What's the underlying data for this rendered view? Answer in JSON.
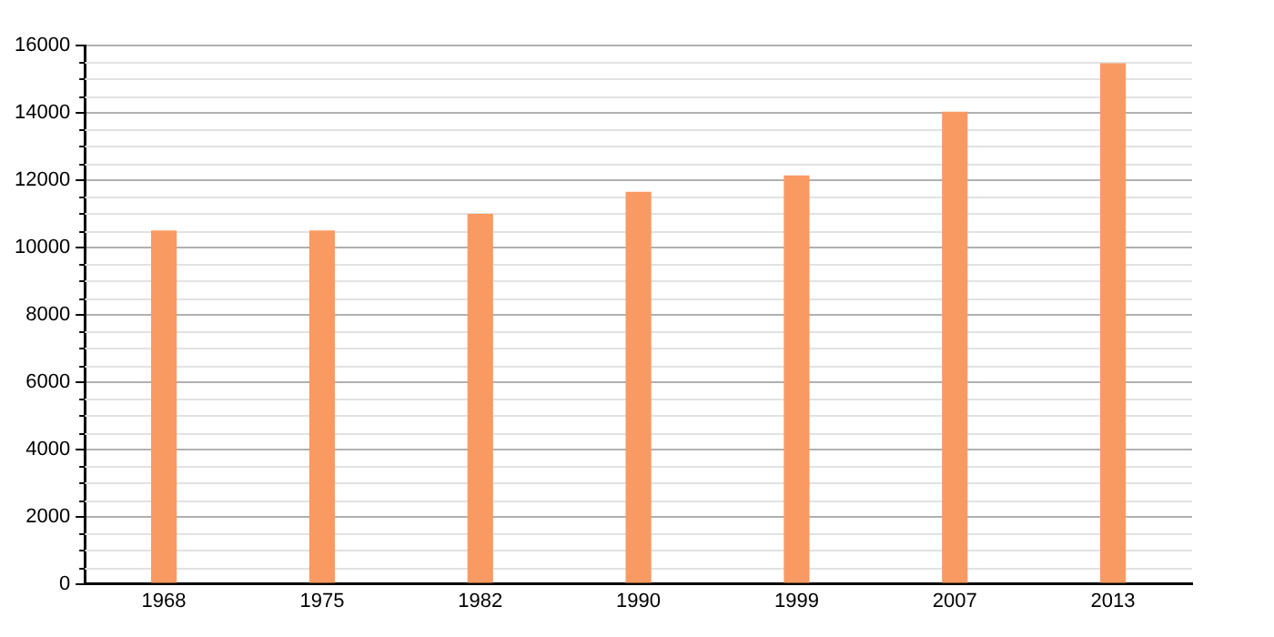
{
  "chart_data": {
    "type": "bar",
    "categories": [
      "1968",
      "1975",
      "1982",
      "1990",
      "1999",
      "2007",
      "2013"
    ],
    "values": [
      10500,
      10500,
      11000,
      11650,
      12140,
      14030,
      15470
    ],
    "color": "#f99a62",
    "ylim": [
      0,
      16000
    ],
    "yticks": [
      0,
      2000,
      4000,
      6000,
      8000,
      10000,
      12000,
      14000,
      16000
    ],
    "grid": "y"
  }
}
